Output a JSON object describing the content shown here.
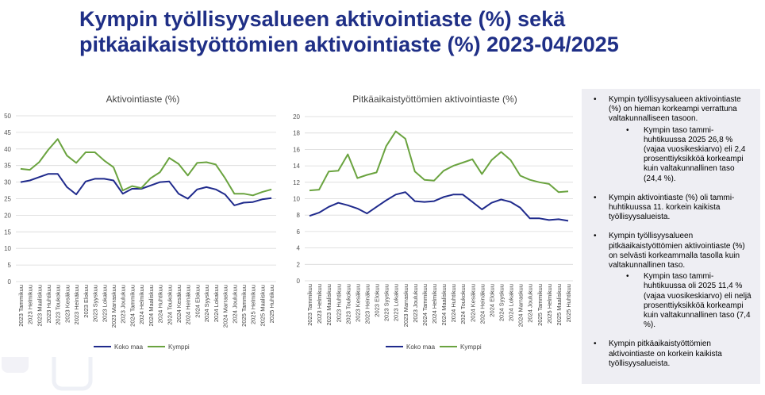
{
  "title": {
    "line1": "Kympin työllisyysalueen aktivointiaste (%) sekä",
    "line2": "pitkäaikaistyöttömien aktivointiaste (%) 2023-04/2025"
  },
  "colors": {
    "title": "#1f2f86",
    "koko_maa": "#1f2a8c",
    "kymppi": "#6aa33f",
    "panel_bg": "#eeeef3"
  },
  "chart_data": [
    {
      "type": "line",
      "title": "Aktivointiaste (%)",
      "xlabel": "",
      "ylabel": "",
      "ylim": [
        0,
        50
      ],
      "yticks": [
        "0",
        "5",
        "10",
        "15",
        "20",
        "25",
        "30",
        "35",
        "40",
        "45",
        "50"
      ],
      "grid": true,
      "legend": "bottom",
      "categories": [
        "2023 Tammikuu",
        "2023 Helmikuu",
        "2023 Maaliskuu",
        "2023 Huhtikuu",
        "2023 Toukokuu",
        "2023 Kesäkuu",
        "2023 Heinäkuu",
        "2023 Elokuu",
        "2023 Syyskuu",
        "2023 Lokakuu",
        "2023 Marraskuu",
        "2023 Joulukuu",
        "2024 Tammikuu",
        "2024 Helmikuu",
        "2024 Maaliskuu",
        "2024 Huhtikuu",
        "2024 Toukokuu",
        "2024 Kesäkuu",
        "2024 Heinäkuu",
        "2024 Elokuu",
        "2024 Syyskuu",
        "2024 Lokakuu",
        "2024 Marraskuu",
        "2024 Joulukuu",
        "2025 Tammikuu",
        "2025 Helmikuu",
        "2025 Maaliskuu",
        "2025 Huhtikuu"
      ],
      "series": [
        {
          "name": "Koko maa",
          "values": [
            30.0,
            30.5,
            31.5,
            32.5,
            32.5,
            28.5,
            26.3,
            30.2,
            31.0,
            31.0,
            30.5,
            26.5,
            28.0,
            28.0,
            29.0,
            30.0,
            30.2,
            26.5,
            25.0,
            27.8,
            28.5,
            27.8,
            26.3,
            23.0,
            23.8,
            24.0,
            24.8,
            25.2
          ]
        },
        {
          "name": "Kymppi",
          "values": [
            34.0,
            33.7,
            36.0,
            39.8,
            43.0,
            38.0,
            35.8,
            39.0,
            39.0,
            36.5,
            34.5,
            27.5,
            28.8,
            28.2,
            31.2,
            33.0,
            37.3,
            35.5,
            32.0,
            35.8,
            36.0,
            35.3,
            31.2,
            26.5,
            26.5,
            26.0,
            27.0,
            27.8
          ]
        }
      ]
    },
    {
      "type": "line",
      "title": "Pitkäaikaistyöttömien aktivointiaste (%)",
      "xlabel": "",
      "ylabel": "",
      "ylim": [
        0,
        20
      ],
      "yticks": [
        "0",
        "2",
        "4",
        "6",
        "8",
        "10",
        "12",
        "14",
        "16",
        "18",
        "20"
      ],
      "grid": true,
      "legend": "bottom",
      "categories": [
        "2023 Tammikuu",
        "2023 Helmikuu",
        "2023 Maaliskuu",
        "2023 Huhtikuu",
        "2023 Toukokuu",
        "2023 Kesäkuu",
        "2023 Heinäkuu",
        "2023 Elokuu",
        "2023 Syyskuu",
        "2023 Lokakuu",
        "2023 Marraskuu",
        "2023 Joulukuu",
        "2024 Tammikuu",
        "2024 Helmikuu",
        "2024 Maaliskuu",
        "2024 Huhtikuu",
        "2024 Toukokuu",
        "2024 Kesäkuu",
        "2024 Heinäkuu",
        "2024 Elokuu",
        "2024 Syyskuu",
        "2024 Lokakuu",
        "2024 Marraskuu",
        "2024 Joulukuu",
        "2025 Tammikuu",
        "2025 Helmikuu",
        "2025 Maaliskuu",
        "2025 Huhtikuu"
      ],
      "series": [
        {
          "name": "Koko maa",
          "values": [
            7.9,
            8.3,
            9.0,
            9.5,
            9.2,
            8.8,
            8.2,
            9.0,
            9.8,
            10.5,
            10.8,
            9.7,
            9.6,
            9.7,
            10.2,
            10.5,
            10.5,
            9.6,
            8.7,
            9.5,
            9.9,
            9.6,
            8.9,
            7.6,
            7.6,
            7.4,
            7.5,
            7.3
          ]
        },
        {
          "name": "Kymppi",
          "values": [
            11.0,
            11.1,
            13.3,
            13.4,
            15.4,
            12.5,
            12.9,
            13.2,
            16.4,
            18.2,
            17.3,
            13.3,
            12.3,
            12.2,
            13.4,
            14.0,
            14.4,
            14.8,
            13.0,
            14.7,
            15.7,
            14.7,
            12.8,
            12.3,
            12.0,
            11.8,
            10.8,
            10.9
          ]
        }
      ]
    }
  ],
  "panel": {
    "bullets": [
      {
        "text": "Kympin työllisyysalueen aktivointiaste (%) on hieman korkeampi verrattuna valtakunnalliseen tasoon.",
        "sub": "Kympin taso tammi-huhtikuussa 2025 26,8 % (vajaa vuosikeskiarvo) eli 2,4 prosenttiyksikköä korkeampi kuin valtakunnallinen taso (24,4 %)."
      },
      {
        "text": "Kympin aktivointiaste (%) oli tammi-huhtikuussa 11. korkein kaikista työllisyysalueista."
      },
      {
        "text": "Kympin työllisyysalueen pitkäaikaistyöttömien aktivointiaste (%) on selvästi korkeammalla tasolla kuin valtakunnallinen taso.",
        "sub": "Kympin taso tammi-huhtikuussa oli 2025 11,4 % (vajaa vuosikeskiarvo) eli neljä prosenttiyksikköä korkeampi kuin valtakunnallinen taso (7,4 %)."
      },
      {
        "text": "Kympin pitkäaikaistyöttömien aktivointiaste on korkein kaikista työllisyysalueista."
      }
    ]
  }
}
